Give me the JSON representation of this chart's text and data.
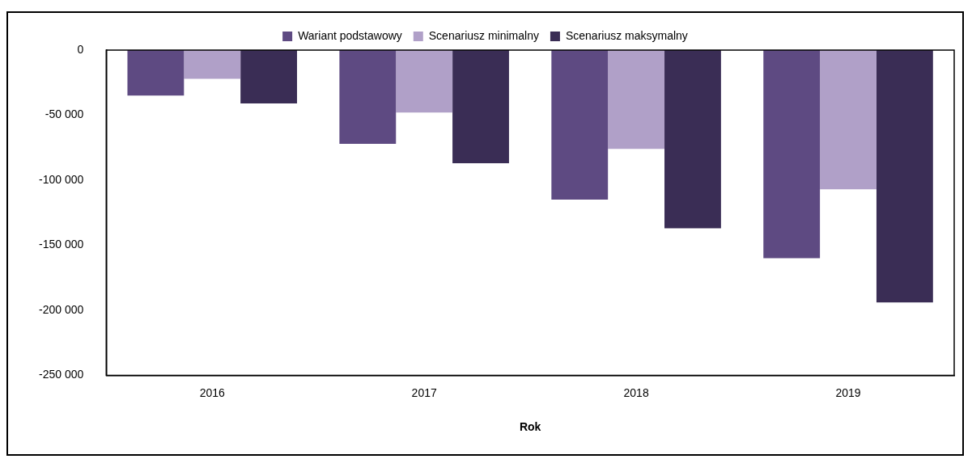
{
  "chart_data": {
    "type": "bar",
    "xlabel": "Rok",
    "categories": [
      "2016",
      "2017",
      "2018",
      "2019"
    ],
    "series": [
      {
        "name": "Wariant podstawowy",
        "color": "#5e4a82",
        "values": [
          -35000,
          -72000,
          -115000,
          -160000
        ]
      },
      {
        "name": "Scenariusz minimalny",
        "color": "#b0a0c8",
        "values": [
          -22000,
          -48000,
          -76000,
          -107000
        ]
      },
      {
        "name": "Scenariusz maksymalny",
        "color": "#3a2d55",
        "values": [
          -41000,
          -87000,
          -137000,
          -194000
        ]
      }
    ],
    "ylim": [
      -250000,
      0
    ],
    "yticks": [
      {
        "value": -250000,
        "label": "-250 000"
      },
      {
        "value": -200000,
        "label": "-200 000"
      },
      {
        "value": -150000,
        "label": "-150 000"
      },
      {
        "value": -100000,
        "label": "-100 000"
      },
      {
        "value": -50000,
        "label": "-50 000"
      },
      0
    ],
    "grid": false,
    "legend": "top"
  }
}
